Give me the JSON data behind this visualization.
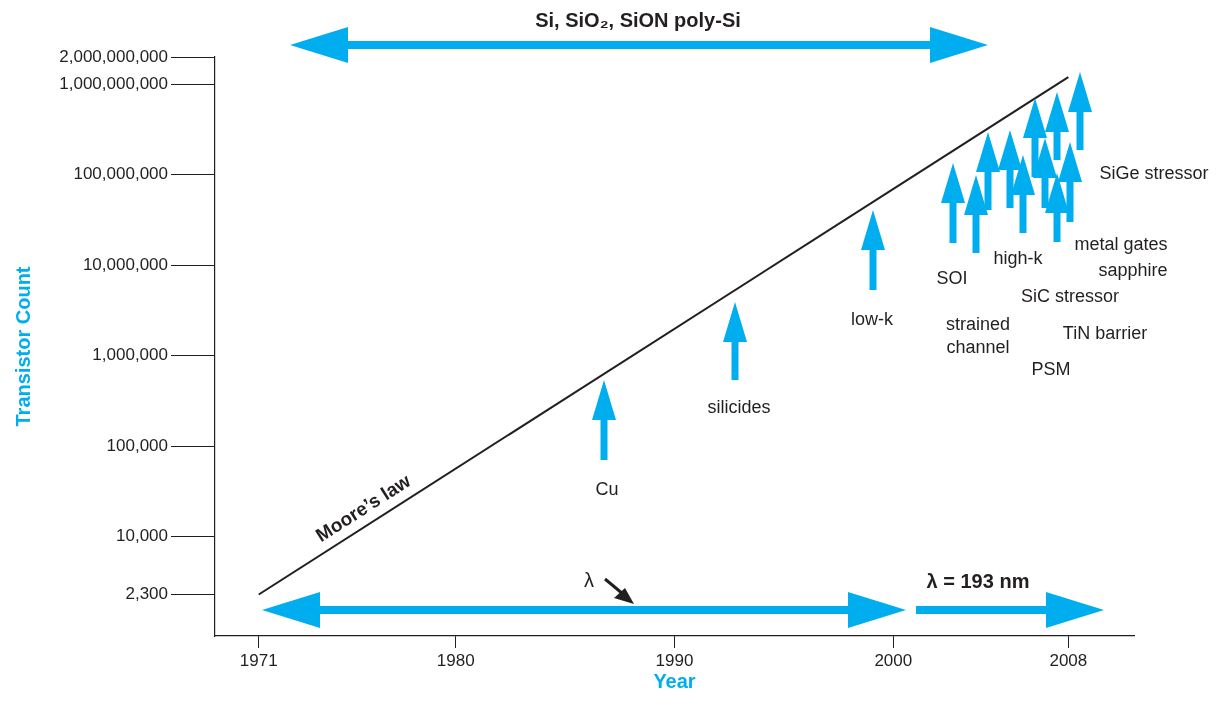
{
  "chart_data": {
    "type": "line",
    "xlabel": "Year",
    "ylabel": "Transistor Count",
    "log": "y",
    "grid": false,
    "legend": false,
    "marker": "none",
    "line_style": "solid",
    "xlim": [
      1969,
      2011
    ],
    "xticks": [
      1971,
      1980,
      1990,
      2000,
      2008
    ],
    "ylim": [
      800,
      2000000000
    ],
    "yticks": [
      {
        "value": 2300,
        "label": "2,300"
      },
      {
        "value": 10000,
        "label": "10,000"
      },
      {
        "value": 100000,
        "label": "100,000"
      },
      {
        "value": 1000000,
        "label": "1,000,000"
      },
      {
        "value": 10000000,
        "label": "10,000,000"
      },
      {
        "value": 100000000,
        "label": "100,000,000"
      },
      {
        "value": 1000000000,
        "label": "1,000,000,000"
      },
      {
        "value": 2000000000,
        "label": "2,000,000,000"
      }
    ],
    "series": [
      {
        "name": "Moore’s law",
        "color": "#231f20",
        "x": [
          1971,
          2008
        ],
        "values": [
          2300,
          1200000000
        ]
      }
    ],
    "annotations": [
      "Si, SiO₂, SiON poly-Si",
      "Cu",
      "silicides",
      "low-k",
      "SOI",
      "strained channel",
      "high-k",
      "SiC stressor",
      "PSM",
      "TiN barrier",
      "metal gates",
      "sapphire",
      "SiGe stressor",
      "λ",
      "λ = 193 nm"
    ]
  }
}
